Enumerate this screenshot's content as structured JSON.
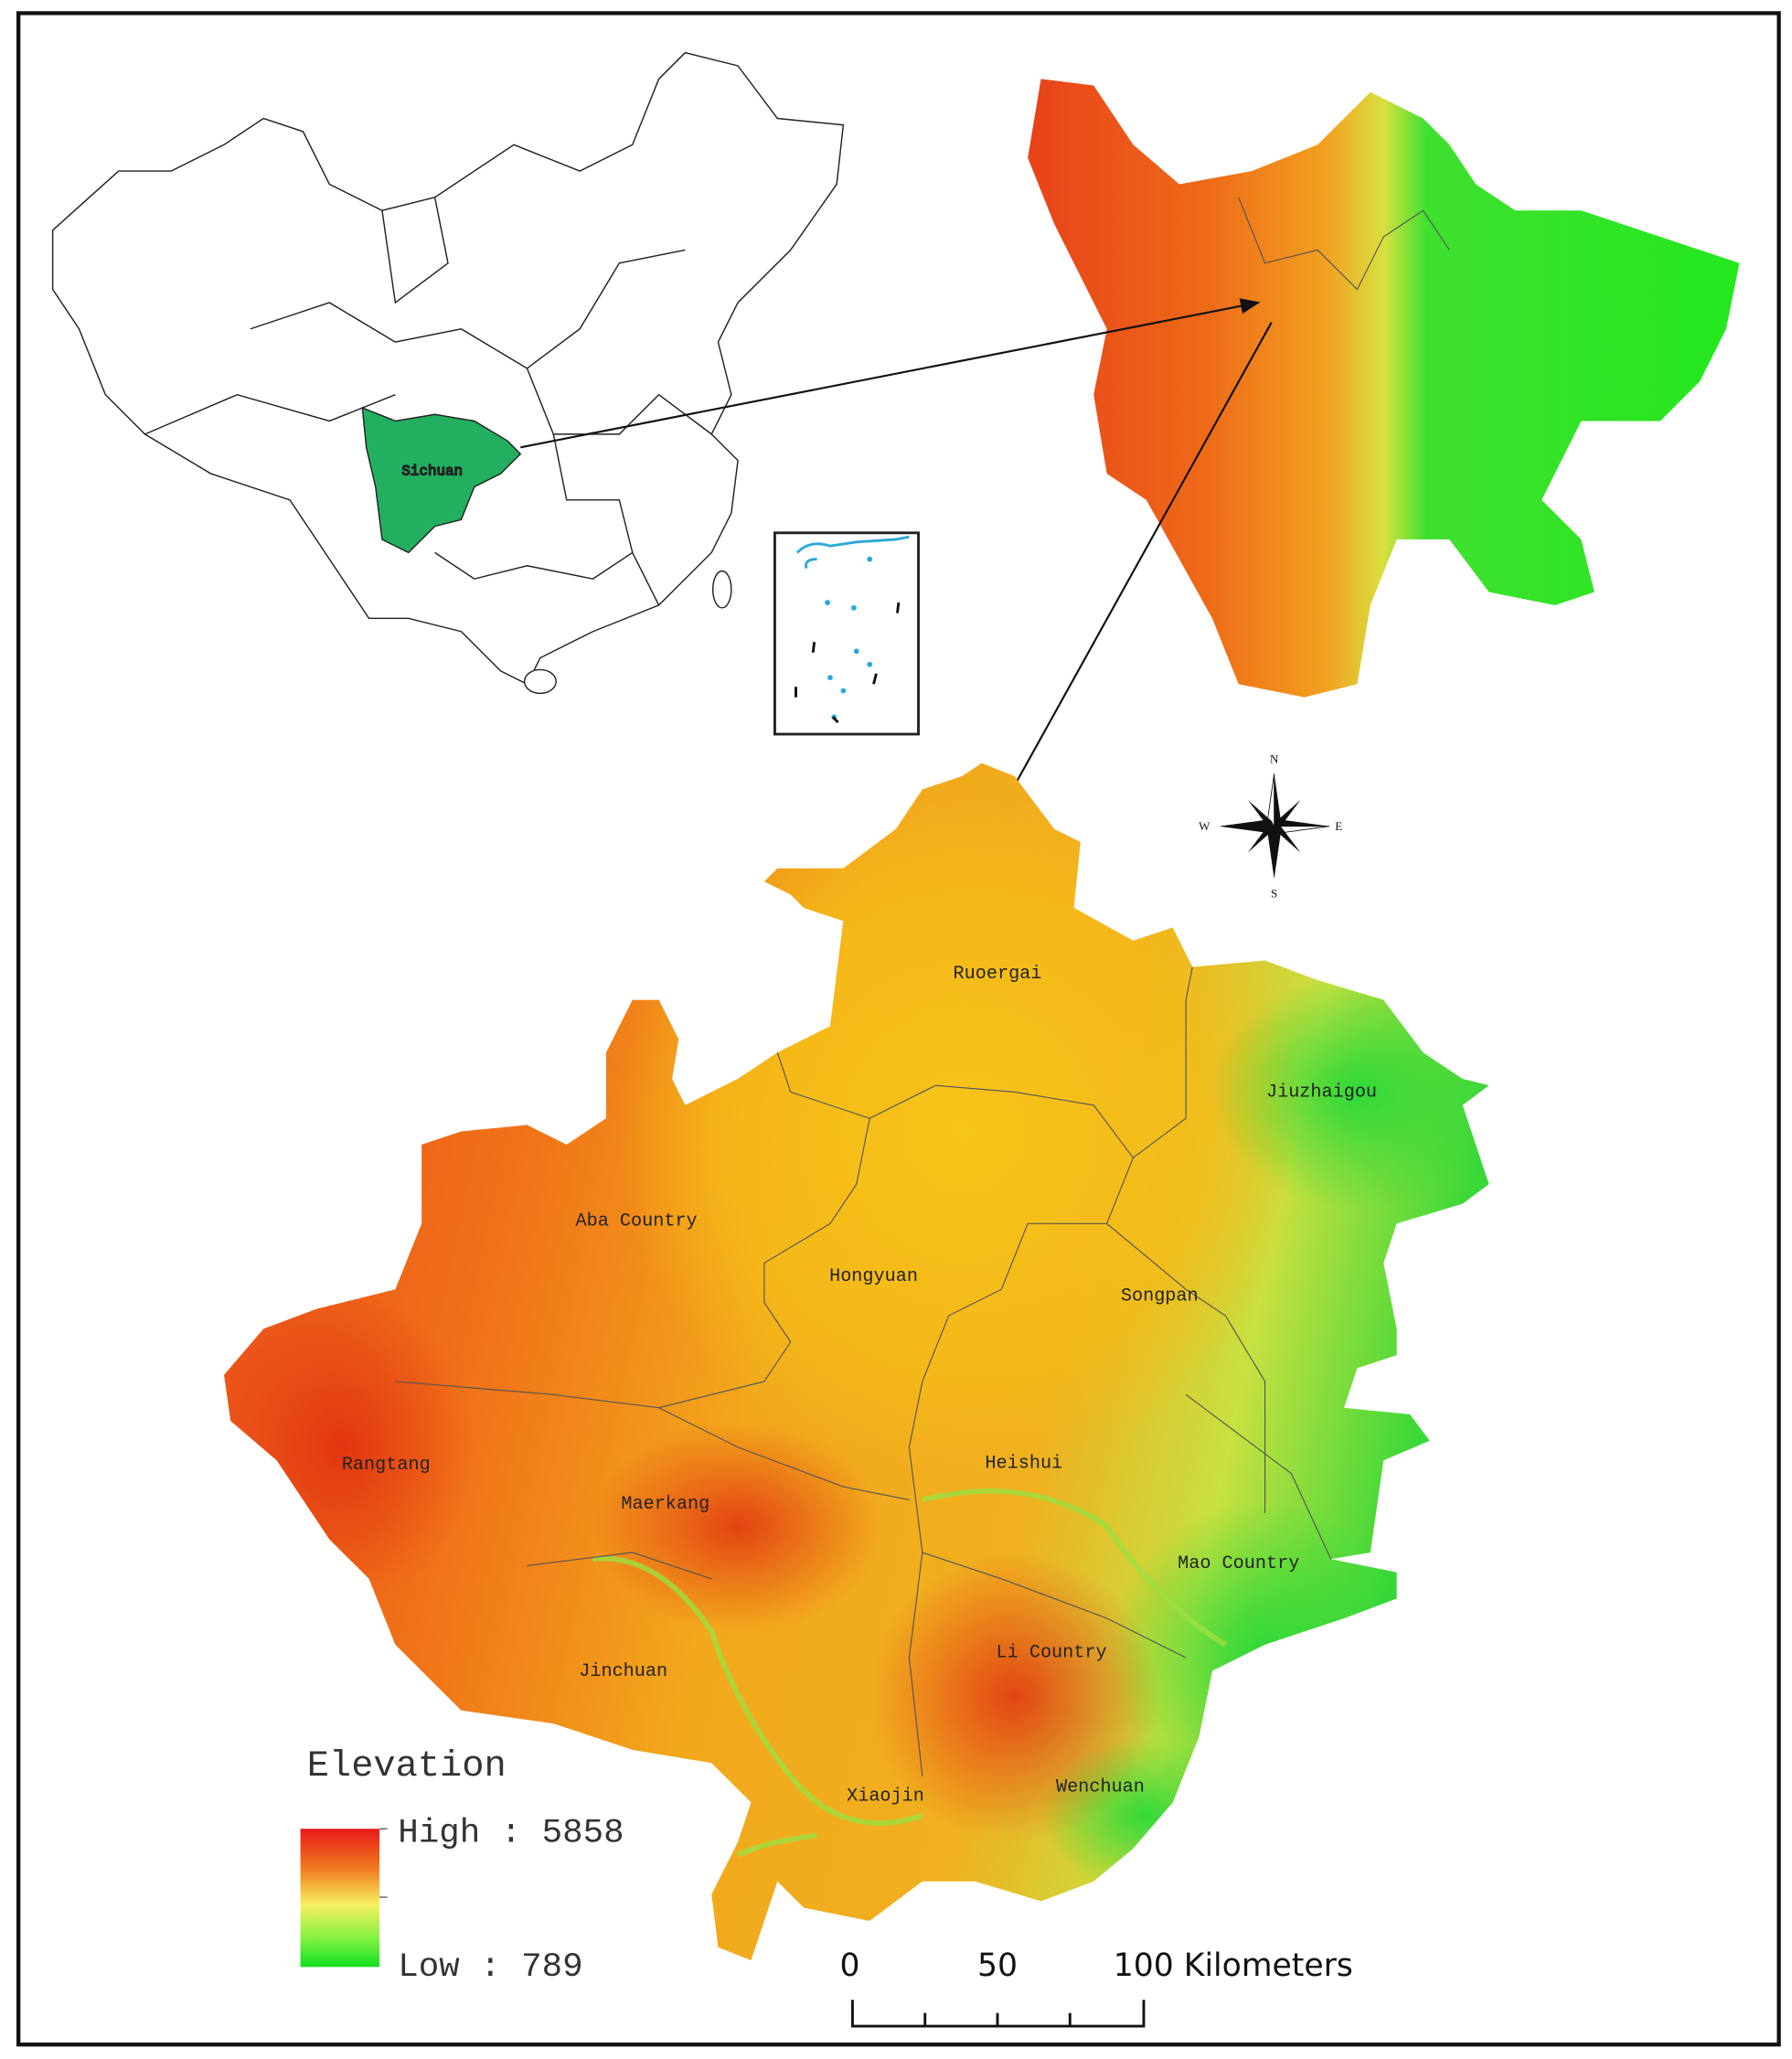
{
  "locator_map": {
    "province_label": "Sichuan"
  },
  "study_area": {
    "county_labels": [
      "Ruoergai",
      "Jiuzhaigou",
      "Aba Country",
      "Hongyuan",
      "Songpan",
      "Rangtang",
      "Maerkang",
      "Heishui",
      "Mao Country",
      "Jinchuan",
      "Li Country",
      "Xiaojin",
      "Wenchuan"
    ]
  },
  "compass": {
    "north": "N",
    "south": "S",
    "west": "W",
    "east": "E"
  },
  "legend": {
    "title": "Elevation",
    "high": "High : 5858",
    "low": "Low : 789"
  },
  "scale_bar": {
    "labels": [
      "0",
      "50",
      "100 Kilometers"
    ]
  }
}
